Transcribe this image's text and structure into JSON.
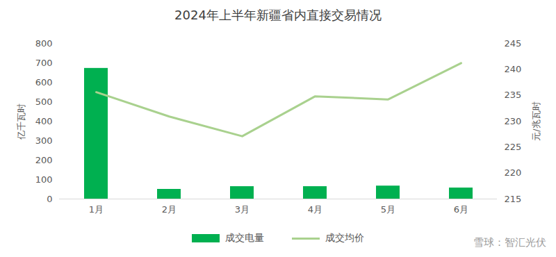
{
  "chart_data": {
    "type": "bar",
    "title": "2024年上半年新疆省内直接交易情况",
    "categories": [
      "1月",
      "2月",
      "3月",
      "4月",
      "5月",
      "6月"
    ],
    "series": [
      {
        "name": "成交电量",
        "type": "bar",
        "color": "#00b050",
        "values": [
          672,
          50,
          64,
          64,
          67,
          57
        ]
      },
      {
        "name": "成交均价",
        "type": "line",
        "color": "#a9d18e",
        "axis": "y2",
        "values": [
          235.6,
          230.9,
          227.1,
          234.8,
          234.2,
          241.2
        ]
      }
    ],
    "ylabel": "亿千瓦时",
    "y2label": "元/兆瓦时",
    "ylim": [
      0,
      800
    ],
    "yticks": [
      0,
      100,
      200,
      300,
      400,
      500,
      600,
      700,
      800
    ],
    "y2lim": [
      215,
      245
    ],
    "y2ticks": [
      215,
      220,
      225,
      230,
      235,
      240,
      245
    ],
    "grid": false,
    "legend": "bottom",
    "annotations": [
      "雪球：智汇光伏"
    ]
  }
}
